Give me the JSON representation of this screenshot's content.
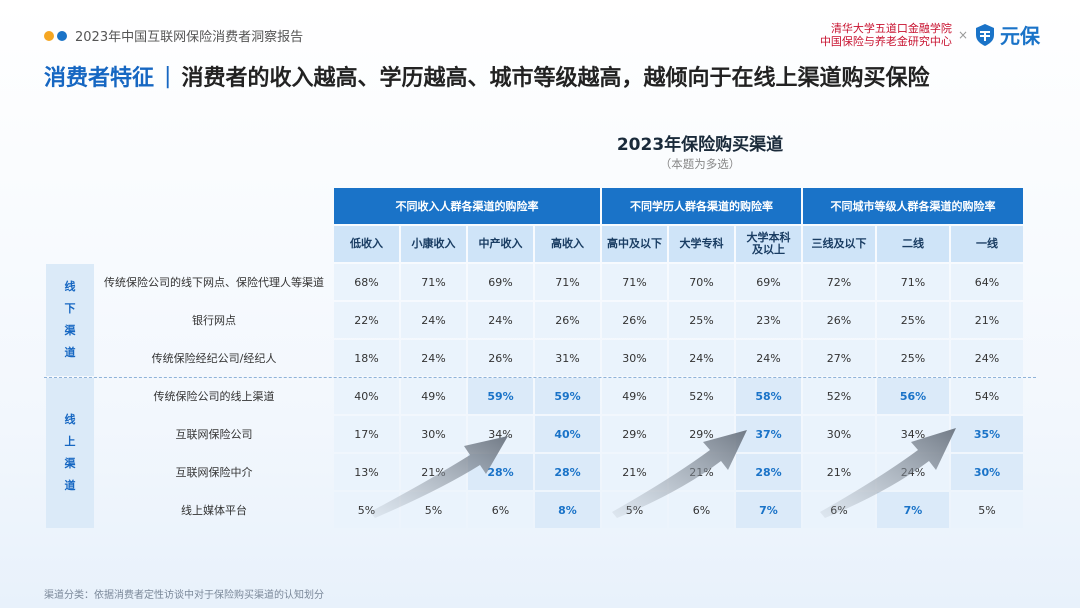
{
  "header": {
    "report_title": "2023年中国互联网保险消费者洞察报告",
    "org_line1": "清华大学五道口金融学院",
    "org_line2": "中国保险与养老金研究中心",
    "separator": "×",
    "brand": "元保",
    "brand_color": "#1a73c8",
    "dot_colors": [
      "#f5a623",
      "#1a73c8"
    ]
  },
  "headline": {
    "topic": "消费者特征",
    "separator": "|",
    "statement": "消费者的收入越高、学历越高、城市等级越高，越倾向于在线上渠道购买保险"
  },
  "chart": {
    "title": "2023年保险购买渠道",
    "subtitle": "（本题为多选）"
  },
  "groups": {
    "income": "不同收入人群各渠道的购险率",
    "education": "不同学历人群各渠道的购险率",
    "city": "不同城市等级人群各渠道的购险率"
  },
  "columns": [
    "低收入",
    "小康收入",
    "中产收入",
    "高收入",
    "高中及以下",
    "大学专科",
    "大学本科及以上",
    "三线及以下",
    "二线",
    "一线"
  ],
  "offline_label": "线下渠道",
  "online_label": "线上渠道",
  "rows": [
    {
      "label": "传统保险公司的线下网点、保险代理人等渠道",
      "values": [
        "68%",
        "71%",
        "69%",
        "71%",
        "71%",
        "70%",
        "69%",
        "72%",
        "71%",
        "64%"
      ],
      "hl": [
        false,
        false,
        false,
        false,
        false,
        false,
        false,
        false,
        false,
        false
      ]
    },
    {
      "label": "银行网点",
      "values": [
        "22%",
        "24%",
        "24%",
        "26%",
        "26%",
        "25%",
        "23%",
        "26%",
        "25%",
        "21%"
      ],
      "hl": [
        false,
        false,
        false,
        false,
        false,
        false,
        false,
        false,
        false,
        false
      ]
    },
    {
      "label": "传统保险经纪公司/经纪人",
      "values": [
        "18%",
        "24%",
        "26%",
        "31%",
        "30%",
        "24%",
        "24%",
        "27%",
        "25%",
        "24%"
      ],
      "hl": [
        false,
        false,
        false,
        false,
        false,
        false,
        false,
        false,
        false,
        false
      ]
    },
    {
      "label": "传统保险公司的线上渠道",
      "values": [
        "40%",
        "49%",
        "59%",
        "59%",
        "49%",
        "52%",
        "58%",
        "52%",
        "56%",
        "54%"
      ],
      "hl": [
        false,
        false,
        true,
        true,
        false,
        false,
        true,
        false,
        true,
        false
      ]
    },
    {
      "label": "互联网保险公司",
      "values": [
        "17%",
        "30%",
        "34%",
        "40%",
        "29%",
        "29%",
        "37%",
        "30%",
        "34%",
        "35%"
      ],
      "hl": [
        false,
        false,
        false,
        true,
        false,
        false,
        true,
        false,
        false,
        true
      ]
    },
    {
      "label": "互联网保险中介",
      "values": [
        "13%",
        "21%",
        "28%",
        "28%",
        "21%",
        "21%",
        "28%",
        "21%",
        "24%",
        "30%"
      ],
      "hl": [
        false,
        false,
        true,
        true,
        false,
        false,
        true,
        false,
        false,
        true
      ]
    },
    {
      "label": "线上媒体平台",
      "values": [
        "5%",
        "5%",
        "6%",
        "8%",
        "5%",
        "6%",
        "7%",
        "6%",
        "7%",
        "5%"
      ],
      "hl": [
        false,
        false,
        false,
        true,
        false,
        false,
        true,
        false,
        true,
        false
      ]
    }
  ],
  "footnote": "渠道分类：依据消费者定性访谈中对于保险购买渠道的认知划分"
}
